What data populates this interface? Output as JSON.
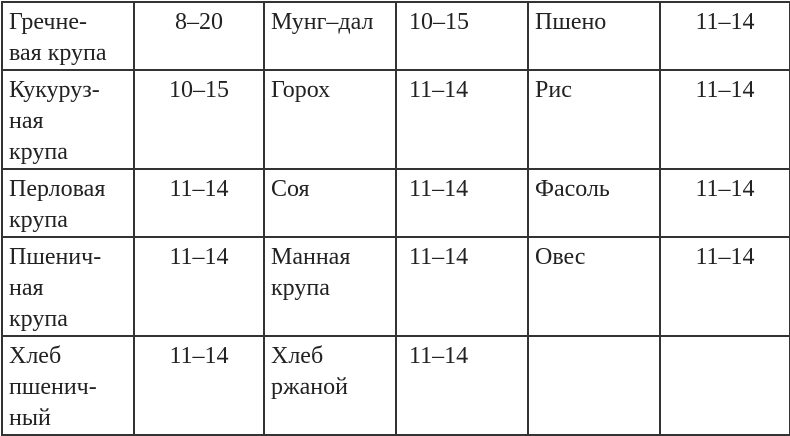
{
  "rows": [
    [
      {
        "t": "Гречне-\nвая крупа"
      },
      {
        "t": "8–20"
      },
      {
        "t": "Мунг–дал"
      },
      {
        "t": "10–15"
      },
      {
        "t": "Пшено"
      },
      {
        "t": "11–14"
      }
    ],
    [
      {
        "t": "Кукуруз-\nная\nкрупа"
      },
      {
        "t": "10–15"
      },
      {
        "t": "Горох"
      },
      {
        "t": "11–14"
      },
      {
        "t": "Рис"
      },
      {
        "t": "11–14"
      }
    ],
    [
      {
        "t": "Перловая\nкрупа"
      },
      {
        "t": "11–14"
      },
      {
        "t": "Соя"
      },
      {
        "t": "11–14"
      },
      {
        "t": "Фасоль"
      },
      {
        "t": "11–14"
      }
    ],
    [
      {
        "t": "Пшенич-\nная\nкрупа"
      },
      {
        "t": "11–14"
      },
      {
        "t": "Манная\nкрупа"
      },
      {
        "t": "11–14"
      },
      {
        "t": "Овес"
      },
      {
        "t": "11–14"
      }
    ],
    [
      {
        "t": "Хлеб\nпшенич-\nный"
      },
      {
        "t": "11–14"
      },
      {
        "t": "Хлеб\nржаной"
      },
      {
        "t": "11–14"
      },
      {
        "t": ""
      },
      {
        "t": ""
      }
    ]
  ]
}
